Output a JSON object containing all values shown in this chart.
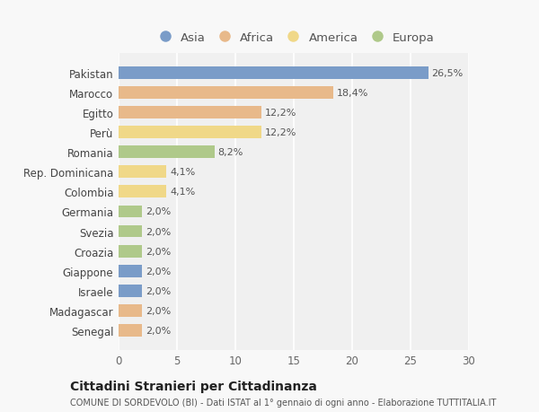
{
  "countries": [
    "Pakistan",
    "Marocco",
    "Egitto",
    "Perù",
    "Romania",
    "Rep. Dominicana",
    "Colombia",
    "Germania",
    "Svezia",
    "Croazia",
    "Giappone",
    "Israele",
    "Madagascar",
    "Senegal"
  ],
  "values": [
    26.5,
    18.4,
    12.2,
    12.2,
    8.2,
    4.1,
    4.1,
    2.0,
    2.0,
    2.0,
    2.0,
    2.0,
    2.0,
    2.0
  ],
  "labels": [
    "26,5%",
    "18,4%",
    "12,2%",
    "12,2%",
    "8,2%",
    "4,1%",
    "4,1%",
    "2,0%",
    "2,0%",
    "2,0%",
    "2,0%",
    "2,0%",
    "2,0%",
    "2,0%"
  ],
  "continents": [
    "Asia",
    "Africa",
    "Africa",
    "America",
    "Europa",
    "America",
    "America",
    "Europa",
    "Europa",
    "Europa",
    "Asia",
    "Asia",
    "Africa",
    "Africa"
  ],
  "colors": {
    "Asia": "#7a9cc8",
    "Africa": "#e8b98a",
    "America": "#f0d888",
    "Europa": "#afc98a"
  },
  "legend_order": [
    "Asia",
    "Africa",
    "America",
    "Europa"
  ],
  "title": "Cittadini Stranieri per Cittadinanza",
  "subtitle": "COMUNE DI SORDEVOLO (BI) - Dati ISTAT al 1° gennaio di ogni anno - Elaborazione TUTTITALIA.IT",
  "xlim": [
    0,
    30
  ],
  "xticks": [
    0,
    5,
    10,
    15,
    20,
    25,
    30
  ],
  "bg_color": "#f8f8f8",
  "plot_bg_color": "#f0f0f0",
  "grid_color": "#ffffff"
}
